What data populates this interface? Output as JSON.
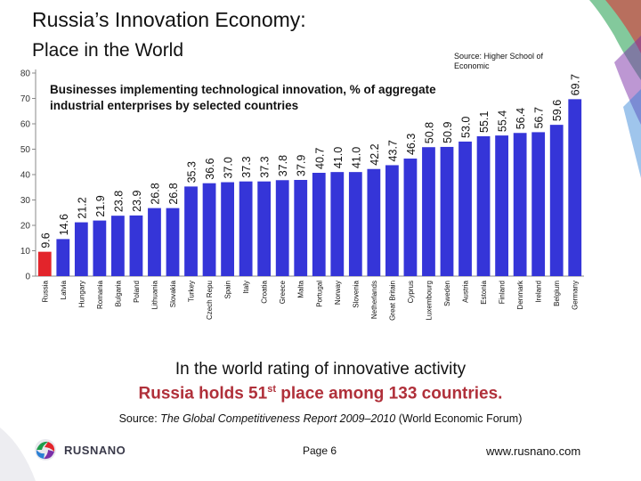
{
  "header": {
    "title_line1": "Russia’s Innovation Economy:",
    "title_line2": "Place in the World",
    "source_top": "Source: Higher School of Economic"
  },
  "chart_data": {
    "type": "bar",
    "title": "Businesses implementing technological innovation, % of aggregate industrial enterprises by selected countries",
    "xlabel": "",
    "ylabel": "",
    "ylim": [
      0,
      80
    ],
    "yticks": [
      0,
      10,
      20,
      30,
      40,
      50,
      60,
      70,
      80
    ],
    "grid": false,
    "categories": [
      "Russia",
      "Latvia",
      "Hungary",
      "Romania",
      "Bulgaria",
      "Poland",
      "Lithuania",
      "Slovakia",
      "Turkey",
      "Czech Repu",
      "Spain",
      "Italy",
      "Croatia",
      "Greece",
      "Malta",
      "Portugal",
      "Norway",
      "Slovenia",
      "Netherlands",
      "Great Britain",
      "Cyprus",
      "Luxembourg",
      "Sweden",
      "Austria",
      "Estonia",
      "Finland",
      "Denmark",
      "Ireland",
      "Belgium",
      "Germany"
    ],
    "values": [
      9.6,
      14.6,
      21.2,
      21.9,
      23.8,
      23.9,
      26.8,
      26.8,
      35.3,
      36.6,
      37.0,
      37.3,
      37.3,
      37.8,
      37.9,
      40.7,
      41.0,
      41.0,
      42.2,
      43.7,
      46.3,
      50.8,
      50.9,
      53.0,
      55.1,
      55.4,
      56.4,
      56.7,
      59.6,
      69.7
    ],
    "data_labels": [
      "9.6",
      "14.6",
      "21.2",
      "21.9",
      "23.8",
      "23.9",
      "26.8",
      "26.8",
      "35.3",
      "36.6",
      "37.0",
      "37.3",
      "37.3",
      "37.8",
      "37.9",
      "40.7",
      "41.0",
      "41.0",
      "42.2",
      "43.7",
      "46.3",
      "50.8",
      "50.9",
      "53.0",
      "55.1",
      "55.4",
      "56.4",
      "56.7",
      "59.6",
      "69.7"
    ],
    "colors": {
      "default": "#3535d8",
      "highlight": "#e3242b",
      "axis": "#888888"
    },
    "highlight_index": 0
  },
  "footer": {
    "rating_line1": "In the world rating of innovative activity",
    "rating_line2_pre": "Russia holds 51",
    "rating_line2_sup": "st",
    "rating_line2_post": " place among 133 countries.",
    "report_pre": "Source: ",
    "report_italic": "The Global Competitiveness Report 2009–2010",
    "report_post": " (World Economic Forum)",
    "logo_text": "RUSNANO",
    "page": "Page 6",
    "website": "www.rusnano.com"
  }
}
